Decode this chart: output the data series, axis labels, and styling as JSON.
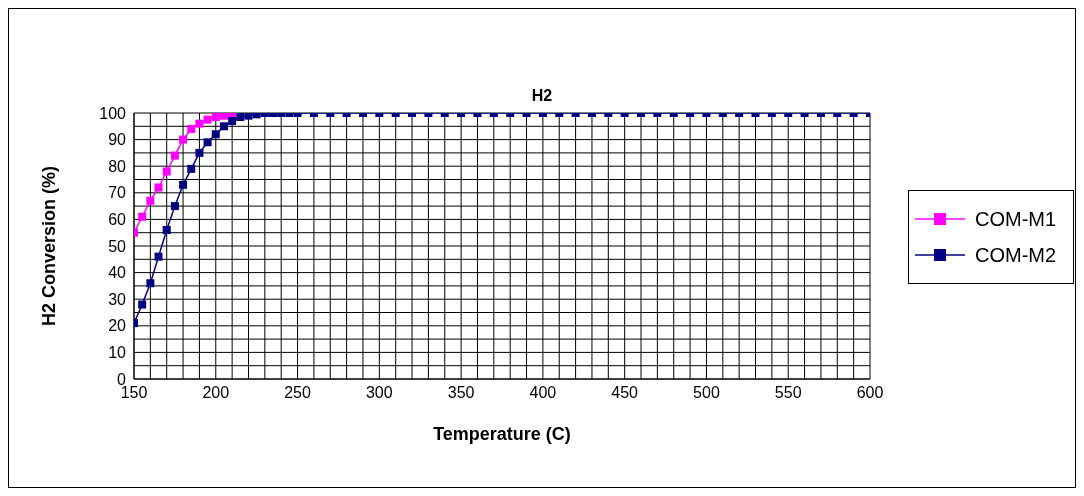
{
  "chart_data": {
    "type": "line",
    "title": "H2",
    "xlabel": "Temperature (C)",
    "ylabel": "H2 Conversion (%)",
    "x": [
      150,
      155,
      160,
      165,
      170,
      175,
      180,
      185,
      190,
      195,
      200,
      205,
      210,
      215,
      220,
      225,
      230,
      235,
      240,
      245,
      250,
      260,
      270,
      280,
      290,
      300,
      310,
      320,
      330,
      340,
      350,
      360,
      370,
      380,
      390,
      400,
      410,
      420,
      430,
      440,
      450,
      460,
      470,
      480,
      490,
      500,
      510,
      520,
      530,
      540,
      550,
      560,
      570,
      580,
      590,
      600
    ],
    "series": [
      {
        "name": "COM-M1",
        "color": "#ff00ff",
        "values": [
          55,
          61,
          67,
          72,
          78,
          84,
          90,
          94,
          96,
          97.5,
          98.5,
          99,
          99.5,
          null,
          null,
          null,
          null,
          null,
          null,
          null,
          null,
          null,
          null,
          null,
          null,
          null,
          null,
          null,
          null,
          null,
          null,
          null,
          null,
          null,
          null,
          null,
          null,
          null,
          null,
          null,
          null,
          null,
          null,
          null,
          null,
          null,
          null,
          null,
          null,
          null,
          null,
          null,
          null,
          null,
          null,
          null
        ]
      },
      {
        "name": "COM-M2",
        "color": "#000080",
        "values": [
          21,
          28,
          36,
          46,
          56,
          65,
          73,
          79,
          85,
          89,
          92,
          95,
          97,
          98.5,
          99,
          99.5,
          100,
          100,
          100,
          100,
          100,
          100,
          100,
          100,
          100,
          100,
          100,
          100,
          100,
          100,
          100,
          100,
          100,
          100,
          100,
          100,
          100,
          100,
          100,
          100,
          100,
          100,
          100,
          100,
          100,
          100,
          100,
          100,
          100,
          100,
          100,
          100,
          100,
          100,
          100,
          100
        ]
      }
    ],
    "xlim": [
      150,
      600
    ],
    "xticks": [
      150,
      {
        "value": 160,
        "label": null
      },
      {
        "value": 170,
        "label": null
      },
      {
        "value": 180,
        "label": null
      },
      {
        "value": 190,
        "label": null
      },
      200,
      {
        "value": 210,
        "label": null
      },
      {
        "value": 220,
        "label": null
      },
      {
        "value": 230,
        "label": null
      },
      {
        "value": 240,
        "label": null
      },
      250,
      {
        "value": 260,
        "label": null
      },
      {
        "value": 270,
        "label": null
      },
      {
        "value": 280,
        "label": null
      },
      {
        "value": 290,
        "label": null
      },
      300,
      {
        "value": 310,
        "label": null
      },
      {
        "value": 320,
        "label": null
      },
      {
        "value": 330,
        "label": null
      },
      {
        "value": 340,
        "label": null
      },
      350,
      {
        "value": 360,
        "label": null
      },
      {
        "value": 370,
        "label": null
      },
      {
        "value": 380,
        "label": null
      },
      {
        "value": 390,
        "label": null
      },
      400,
      {
        "value": 410,
        "label": null
      },
      {
        "value": 420,
        "label": null
      },
      {
        "value": 430,
        "label": null
      },
      {
        "value": 440,
        "label": null
      },
      450,
      {
        "value": 460,
        "label": null
      },
      {
        "value": 470,
        "label": null
      },
      {
        "value": 480,
        "label": null
      },
      {
        "value": 490,
        "label": null
      },
      500,
      {
        "value": 510,
        "label": null
      },
      {
        "value": 520,
        "label": null
      },
      {
        "value": 530,
        "label": null
      },
      {
        "value": 540,
        "label": null
      },
      550,
      {
        "value": 560,
        "label": null
      },
      {
        "value": 570,
        "label": null
      },
      {
        "value": 580,
        "label": null
      },
      {
        "value": 590,
        "label": null
      },
      600
    ],
    "ylim": [
      0,
      100
    ],
    "yticks": [
      0,
      {
        "value": 5,
        "label": null
      },
      10,
      {
        "value": 15,
        "label": null
      },
      20,
      {
        "value": 25,
        "label": null
      },
      30,
      {
        "value": 35,
        "label": null
      },
      40,
      {
        "value": 45,
        "label": null
      },
      50,
      {
        "value": 55,
        "label": null
      },
      60,
      {
        "value": 65,
        "label": null
      },
      70,
      {
        "value": 75,
        "label": null
      },
      80,
      {
        "value": 85,
        "label": null
      },
      90,
      {
        "value": 95,
        "label": null
      },
      100
    ],
    "grid": true,
    "legend": "right",
    "marker": "square",
    "line_style": "solid"
  }
}
